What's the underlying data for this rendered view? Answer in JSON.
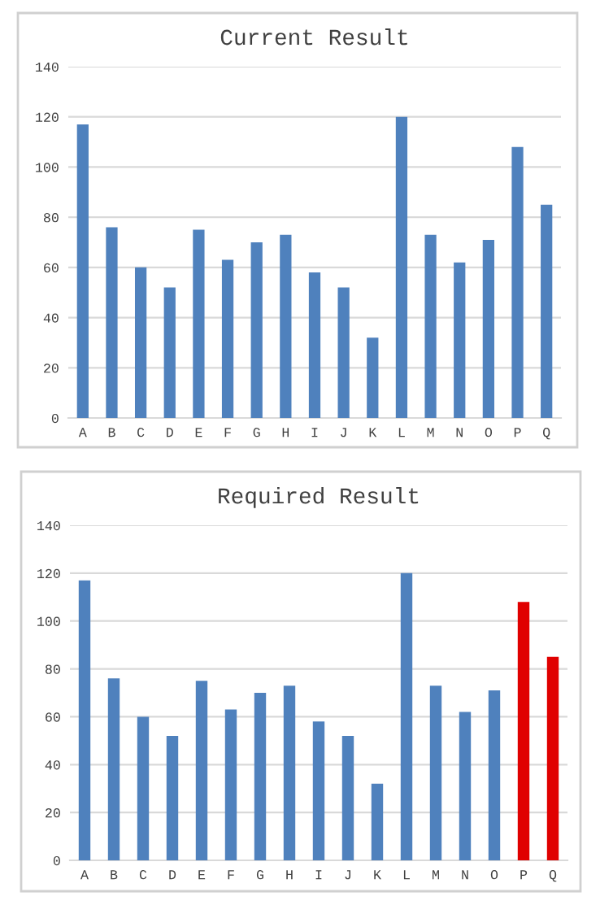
{
  "chart_data": [
    {
      "type": "bar",
      "title": "Current Result",
      "categories": [
        "A",
        "B",
        "C",
        "D",
        "E",
        "F",
        "G",
        "H",
        "I",
        "J",
        "K",
        "L",
        "M",
        "N",
        "O",
        "P",
        "Q"
      ],
      "values": [
        117,
        76,
        60,
        52,
        75,
        63,
        70,
        73,
        58,
        52,
        32,
        120,
        73,
        62,
        71,
        108,
        85
      ],
      "color": "#4f81bd",
      "ylim": [
        0,
        140
      ],
      "yticks": [
        0,
        20,
        40,
        60,
        80,
        100,
        120,
        140
      ],
      "grid": "y"
    },
    {
      "type": "bar",
      "title": "Required Result",
      "categories": [
        "A",
        "B",
        "C",
        "D",
        "E",
        "F",
        "G",
        "H",
        "I",
        "J",
        "K",
        "L",
        "M",
        "N",
        "O",
        "P",
        "Q"
      ],
      "values": [
        117,
        76,
        60,
        52,
        75,
        63,
        70,
        73,
        58,
        52,
        32,
        120,
        73,
        62,
        71,
        108,
        85
      ],
      "colors": [
        "#4f81bd",
        "#4f81bd",
        "#4f81bd",
        "#4f81bd",
        "#4f81bd",
        "#4f81bd",
        "#4f81bd",
        "#4f81bd",
        "#4f81bd",
        "#4f81bd",
        "#4f81bd",
        "#4f81bd",
        "#4f81bd",
        "#4f81bd",
        "#4f81bd",
        "#e00000",
        "#e00000"
      ],
      "ylim": [
        0,
        140
      ],
      "yticks": [
        0,
        20,
        40,
        60,
        80,
        100,
        120,
        140
      ],
      "grid": "y"
    }
  ]
}
